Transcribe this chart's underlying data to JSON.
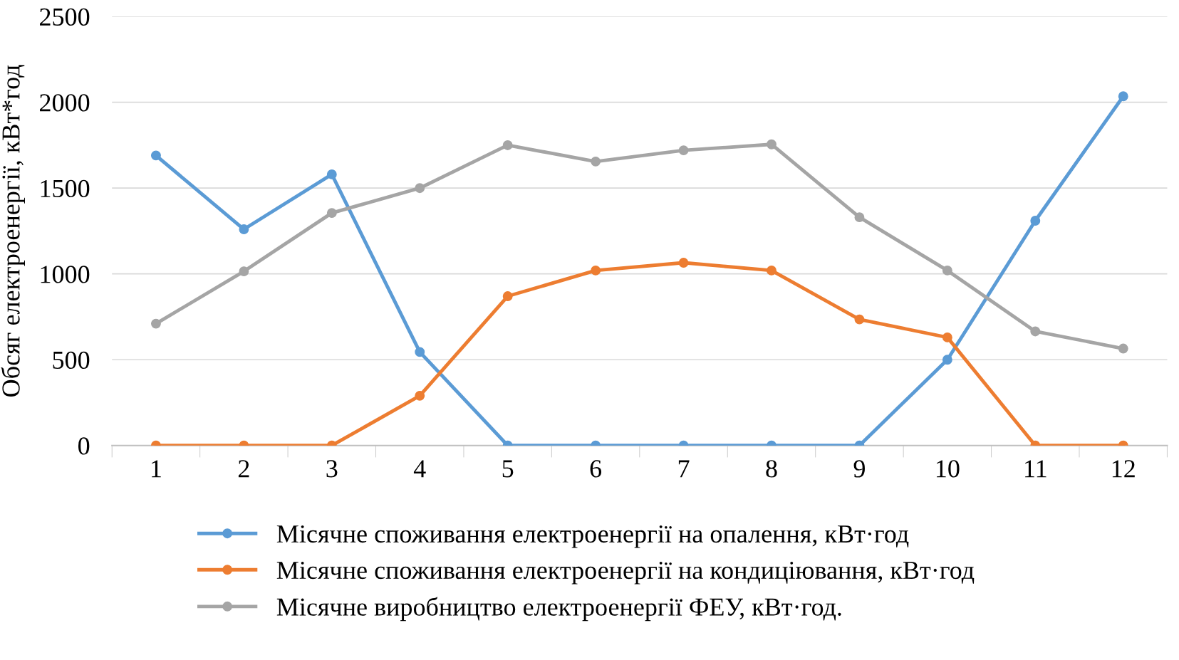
{
  "chart_data": {
    "type": "line",
    "ylabel": "Обсяг електроенергії, кВт*год",
    "categories": [
      "1",
      "2",
      "3",
      "4",
      "5",
      "6",
      "7",
      "8",
      "9",
      "10",
      "11",
      "12"
    ],
    "series": [
      {
        "name": "Місячне споживання електроенергії на опалення, кВт·год",
        "color": "#5b9bd5",
        "values": [
          1690,
          1260,
          1580,
          545,
          0,
          0,
          0,
          0,
          0,
          500,
          1310,
          2035
        ]
      },
      {
        "name": "Місячне споживання електроенергії на кондиціювання, кВт·год",
        "color": "#ed7d31",
        "values": [
          0,
          0,
          0,
          290,
          870,
          1020,
          1065,
          1020,
          735,
          630,
          0,
          0
        ]
      },
      {
        "name": "Місячне виробництво електроенергії ФЕУ, кВт·год.",
        "color": "#a5a5a5",
        "values": [
          710,
          1015,
          1355,
          1500,
          1750,
          1655,
          1720,
          1755,
          1330,
          1020,
          665,
          565
        ]
      }
    ],
    "ylim": [
      0,
      2500
    ],
    "yticks": [
      0,
      500,
      1000,
      1500,
      2000,
      2500
    ],
    "grid": "y",
    "legend": "bottom",
    "marker": "circle",
    "line_style": "solid"
  }
}
